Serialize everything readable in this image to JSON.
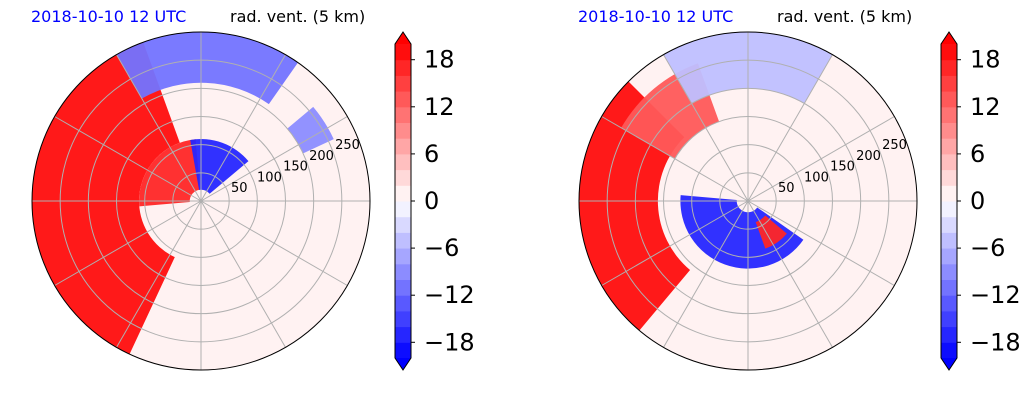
{
  "chart_data": [
    {
      "type": "heatmap",
      "projection": "polar",
      "title_left": "2018-10-10 12 UTC",
      "title_right": "rad. vent. (5 km)",
      "radial_tick_labels": [
        "50",
        "100",
        "150",
        "200",
        "250"
      ],
      "radial_ticks": [
        50,
        100,
        150,
        200,
        250
      ],
      "rlim": [
        0,
        300
      ],
      "angular_grid_step_deg": 30,
      "grid": true,
      "colorbar": {
        "cmap": "bwr",
        "levels_min": -20,
        "levels_max": 20,
        "level_step": 2,
        "ticks": [
          -18,
          -12,
          -6,
          0,
          6,
          12,
          18
        ],
        "tick_labels": [
          "−18",
          "−12",
          "−6",
          "0",
          "6",
          "12",
          "18"
        ],
        "extend": "both"
      },
      "regions": [
        {
          "value": 20,
          "sector_deg": [
            110,
            245
          ],
          "r_range": [
            110,
            300
          ]
        },
        {
          "value": 17,
          "sector_deg": [
            95,
            185
          ],
          "r_range": [
            20,
            110
          ]
        },
        {
          "value": -18,
          "sector_deg": [
            40,
            100
          ],
          "r_range": [
            20,
            110
          ]
        },
        {
          "value": -12,
          "sector_deg": [
            55,
            120
          ],
          "r_range": [
            210,
            300
          ]
        },
        {
          "value": -9,
          "sector_deg": [
            25,
            40
          ],
          "r_range": [
            200,
            260
          ]
        }
      ],
      "background_value": 1
    },
    {
      "type": "heatmap",
      "projection": "polar",
      "title_left": "2018-10-10 12 UTC",
      "title_right": "rad. vent. (5 km)",
      "radial_tick_labels": [
        "50",
        "100",
        "150",
        "200",
        "250"
      ],
      "radial_ticks": [
        50,
        100,
        150,
        200,
        250
      ],
      "rlim": [
        0,
        300
      ],
      "angular_grid_step_deg": 30,
      "grid": true,
      "colorbar": {
        "cmap": "bwr",
        "levels_min": -20,
        "levels_max": 20,
        "level_step": 2,
        "ticks": [
          -18,
          -12,
          -6,
          0,
          6,
          12,
          18
        ],
        "tick_labels": [
          "−18",
          "−12",
          "−6",
          "0",
          "6",
          "12",
          "18"
        ],
        "extend": "both"
      },
      "regions": [
        {
          "value": 20,
          "sector_deg": [
            135,
            230
          ],
          "r_range": [
            160,
            300
          ]
        },
        {
          "value": 12,
          "sector_deg": [
            110,
            150
          ],
          "r_range": [
            150,
            260
          ]
        },
        {
          "value": -18,
          "sector_deg": [
            175,
            325
          ],
          "r_range": [
            20,
            120
          ]
        },
        {
          "value": -6,
          "sector_deg": [
            60,
            120
          ],
          "r_range": [
            200,
            300
          ]
        },
        {
          "value": 16,
          "sector_deg": [
            290,
            320
          ],
          "r_range": [
            40,
            90
          ]
        }
      ],
      "background_value": 1
    }
  ]
}
